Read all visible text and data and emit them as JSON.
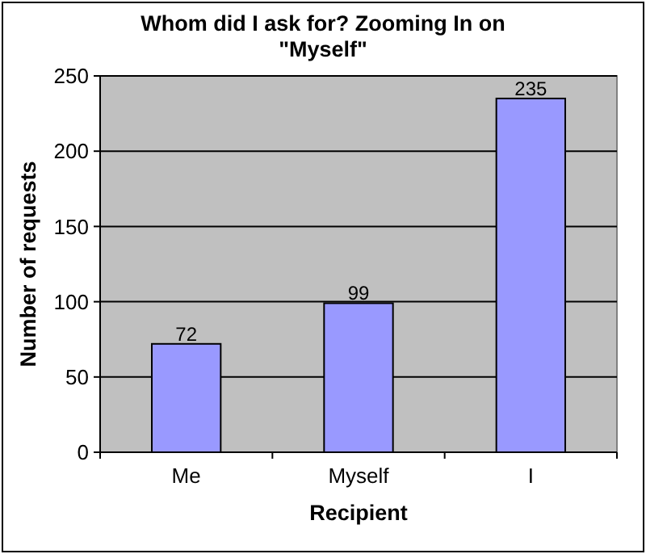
{
  "chart_data": {
    "type": "bar",
    "title": "Whom did I ask for? Zooming In on \"Myself\"",
    "xlabel": "Recipient",
    "ylabel": "Number of requests",
    "categories": [
      "Me",
      "Myself",
      "I"
    ],
    "values": [
      72,
      99,
      235
    ],
    "color": "#9999ff",
    "data_labels": true,
    "ylim": [
      0,
      250
    ],
    "yticks": [
      0,
      50,
      100,
      150,
      200,
      250
    ],
    "grid": "y"
  }
}
